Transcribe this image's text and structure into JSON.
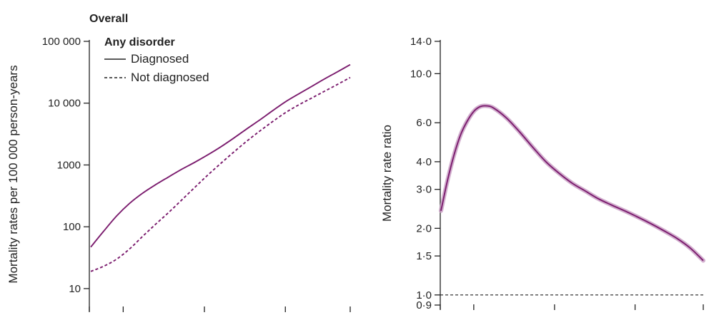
{
  "header": {
    "title": "Overall"
  },
  "chart_data": [
    {
      "type": "line",
      "title": "Any disorder",
      "xlabel": "",
      "ylabel": "Mortality rates per 100 000 person-years",
      "y_scale": "log",
      "ylim": [
        5,
        100000
      ],
      "y_ticks": [
        {
          "value": 10,
          "label": "10"
        },
        {
          "value": 100,
          "label": "100"
        },
        {
          "value": 1000,
          "label": "1000"
        },
        {
          "value": 10000,
          "label": "10 000"
        },
        {
          "value": 100000,
          "label": "100 000"
        }
      ],
      "x_ticks": [
        0,
        0.125,
        0.438,
        0.75,
        1
      ],
      "legend": {
        "placement": "top-left",
        "entries": [
          "Diagnosed",
          "Not diagnosed"
        ]
      },
      "series": [
        {
          "name": "Diagnosed",
          "style": "solid",
          "color": "#7b1c6e",
          "x": [
            0,
            0.05,
            0.1,
            0.15,
            0.2,
            0.25,
            0.3,
            0.35,
            0.4,
            0.45,
            0.5,
            0.55,
            0.6,
            0.65,
            0.7,
            0.75,
            0.8,
            0.85,
            0.9,
            0.95,
            1.0
          ],
          "y": [
            47,
            85,
            150,
            240,
            350,
            480,
            640,
            850,
            1100,
            1450,
            1950,
            2700,
            3800,
            5300,
            7500,
            10500,
            14000,
            18500,
            24500,
            32000,
            42000
          ]
        },
        {
          "name": "Not diagnosed",
          "style": "dashed",
          "color": "#7b1c6e",
          "x": [
            0,
            0.05,
            0.1,
            0.15,
            0.2,
            0.25,
            0.3,
            0.35,
            0.4,
            0.45,
            0.5,
            0.55,
            0.6,
            0.65,
            0.7,
            0.75,
            0.8,
            0.85,
            0.9,
            0.95,
            1.0
          ],
          "y": [
            19,
            23,
            30,
            44,
            70,
            110,
            170,
            270,
            430,
            680,
            1050,
            1600,
            2400,
            3500,
            5000,
            7000,
            9300,
            12000,
            15500,
            20000,
            26000
          ]
        }
      ]
    },
    {
      "type": "line",
      "title": "",
      "xlabel": "",
      "ylabel": "Mortality rate ratio",
      "y_scale": "log",
      "ylim": [
        0.9,
        14.0
      ],
      "y_ticks": [
        {
          "value": 0.9,
          "label": "0·9"
        },
        {
          "value": 1.0,
          "label": "1·0"
        },
        {
          "value": 1.5,
          "label": "1·5"
        },
        {
          "value": 2.0,
          "label": "2·0"
        },
        {
          "value": 3.0,
          "label": "3·0"
        },
        {
          "value": 4.0,
          "label": "4·0"
        },
        {
          "value": 6.0,
          "label": "6·0"
        },
        {
          "value": 10.0,
          "label": "10·0"
        },
        {
          "value": 14.0,
          "label": "14·0"
        }
      ],
      "x_ticks": [
        0,
        0.125,
        0.433,
        0.74,
        1
      ],
      "reference_line": {
        "value": 1.0,
        "style": "dashed"
      },
      "series": [
        {
          "name": "",
          "style": "solid",
          "color": "#7b1c6e",
          "band_color": "#c79bc2",
          "x": [
            0,
            0.025,
            0.05,
            0.075,
            0.1,
            0.125,
            0.15,
            0.175,
            0.2,
            0.25,
            0.3,
            0.35,
            0.4,
            0.45,
            0.5,
            0.55,
            0.6,
            0.65,
            0.7,
            0.75,
            0.8,
            0.85,
            0.9,
            0.95,
            1.0
          ],
          "y": [
            2.4,
            3.3,
            4.3,
            5.3,
            6.1,
            6.75,
            7.1,
            7.15,
            7.0,
            6.3,
            5.45,
            4.65,
            4.0,
            3.55,
            3.2,
            2.95,
            2.72,
            2.55,
            2.4,
            2.25,
            2.1,
            1.95,
            1.8,
            1.63,
            1.43
          ]
        }
      ]
    }
  ]
}
